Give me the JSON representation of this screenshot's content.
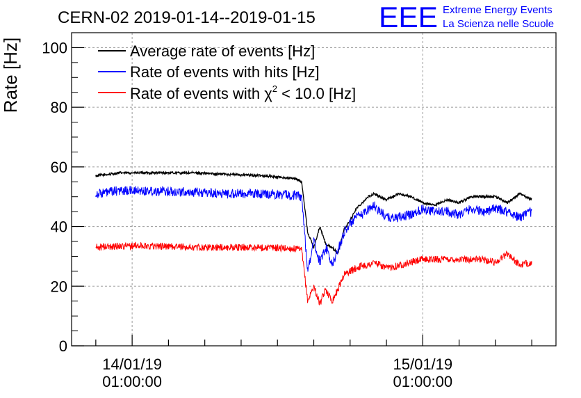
{
  "header": {
    "title": "CERN-02 2019-01-14--2019-01-15",
    "logo_text": "EEE",
    "logo_line1": "Extreme Energy Events",
    "logo_line2": "La Scienza nelle Scuole"
  },
  "chart_data": {
    "type": "line",
    "title": "CERN-02 2019-01-14--2019-01-15",
    "xlabel": "",
    "ylabel": "Rate [Hz]",
    "ylim": [
      0,
      105
    ],
    "yticks": [
      0,
      20,
      40,
      60,
      80,
      100
    ],
    "xlim": [
      "2019-01-13T20:00:00",
      "2019-01-15T12:00:00"
    ],
    "xticks": [
      {
        "date": "14/01/19",
        "time": "01:00:00",
        "x": "2019-01-14T01:00:00"
      },
      {
        "date": "15/01/19",
        "time": "01:00:00",
        "x": "2019-01-15T01:00:00"
      }
    ],
    "grid": true,
    "legend_position": "top-left",
    "series": [
      {
        "name": "Average rate of events [Hz]",
        "legend_label": "Average rate of events [Hz]",
        "color": "#000000",
        "noise": 0.4,
        "x": [
          "2019-01-13T22:00:00",
          "2019-01-14T00:00:00",
          "2019-01-14T03:00:00",
          "2019-01-14T06:00:00",
          "2019-01-14T09:00:00",
          "2019-01-14T12:00:00",
          "2019-01-14T14:30:00",
          "2019-01-14T15:00:00",
          "2019-01-14T15:30:00",
          "2019-01-14T16:00:00",
          "2019-01-14T16:30:00",
          "2019-01-14T17:00:00",
          "2019-01-14T17:30:00",
          "2019-01-14T18:00:00",
          "2019-01-14T18:30:00",
          "2019-01-14T19:00:00",
          "2019-01-14T19:30:00",
          "2019-01-14T20:00:00",
          "2019-01-14T20:30:00",
          "2019-01-14T21:00:00",
          "2019-01-14T21:30:00",
          "2019-01-14T22:00:00",
          "2019-01-14T23:00:00",
          "2019-01-15T00:00:00",
          "2019-01-15T01:00:00",
          "2019-01-15T02:00:00",
          "2019-01-15T03:00:00",
          "2019-01-15T04:00:00",
          "2019-01-15T05:00:00",
          "2019-01-15T06:00:00",
          "2019-01-15T07:00:00",
          "2019-01-15T08:00:00",
          "2019-01-15T09:00:00",
          "2019-01-15T10:00:00"
        ],
        "y": [
          57,
          58,
          58,
          58,
          57.5,
          57,
          56,
          55,
          38,
          33,
          40,
          34,
          33,
          31,
          39,
          42,
          46,
          48,
          50,
          51,
          50,
          49,
          51,
          50,
          48,
          47,
          49,
          48,
          50,
          50,
          50,
          48,
          51,
          49
        ]
      },
      {
        "name": "Rate of events with hits [Hz]",
        "legend_label": "Rate of events with hits [Hz]",
        "color": "#0000ff",
        "noise": 1.6,
        "x": [
          "2019-01-13T22:00:00",
          "2019-01-14T00:00:00",
          "2019-01-14T03:00:00",
          "2019-01-14T06:00:00",
          "2019-01-14T09:00:00",
          "2019-01-14T12:00:00",
          "2019-01-14T14:30:00",
          "2019-01-14T15:00:00",
          "2019-01-14T15:30:00",
          "2019-01-14T16:00:00",
          "2019-01-14T16:30:00",
          "2019-01-14T17:00:00",
          "2019-01-14T17:30:00",
          "2019-01-14T18:00:00",
          "2019-01-14T18:30:00",
          "2019-01-14T19:00:00",
          "2019-01-14T19:30:00",
          "2019-01-14T20:00:00",
          "2019-01-14T20:30:00",
          "2019-01-14T21:00:00",
          "2019-01-14T21:30:00",
          "2019-01-14T22:00:00",
          "2019-01-14T23:00:00",
          "2019-01-15T00:00:00",
          "2019-01-15T01:00:00",
          "2019-01-15T02:00:00",
          "2019-01-15T03:00:00",
          "2019-01-15T04:00:00",
          "2019-01-15T05:00:00",
          "2019-01-15T06:00:00",
          "2019-01-15T07:00:00",
          "2019-01-15T08:00:00",
          "2019-01-15T09:00:00",
          "2019-01-15T10:00:00"
        ],
        "y": [
          51,
          52,
          52,
          51.5,
          51,
          51,
          50.5,
          50,
          25,
          35,
          28,
          33,
          27,
          32,
          38,
          41,
          43,
          44,
          46,
          47,
          45,
          43,
          43,
          44,
          46,
          45,
          45,
          44,
          46,
          45,
          46,
          45,
          43,
          45
        ]
      },
      {
        "name": "Rate of events with χ² < 10.0 [Hz]",
        "legend_label": "Rate of events with χ",
        "legend_sup": "2",
        "legend_tail": " < 10.0 [Hz]",
        "color": "#ff0000",
        "noise": 1.2,
        "x": [
          "2019-01-13T22:00:00",
          "2019-01-14T00:00:00",
          "2019-01-14T03:00:00",
          "2019-01-14T06:00:00",
          "2019-01-14T09:00:00",
          "2019-01-14T12:00:00",
          "2019-01-14T14:30:00",
          "2019-01-14T15:00:00",
          "2019-01-14T15:30:00",
          "2019-01-14T16:00:00",
          "2019-01-14T16:30:00",
          "2019-01-14T17:00:00",
          "2019-01-14T17:30:00",
          "2019-01-14T18:00:00",
          "2019-01-14T18:30:00",
          "2019-01-14T19:00:00",
          "2019-01-14T19:30:00",
          "2019-01-14T20:00:00",
          "2019-01-14T20:30:00",
          "2019-01-14T21:00:00",
          "2019-01-14T21:30:00",
          "2019-01-14T22:00:00",
          "2019-01-14T23:00:00",
          "2019-01-15T00:00:00",
          "2019-01-15T01:00:00",
          "2019-01-15T02:00:00",
          "2019-01-15T03:00:00",
          "2019-01-15T04:00:00",
          "2019-01-15T05:00:00",
          "2019-01-15T06:00:00",
          "2019-01-15T07:00:00",
          "2019-01-15T08:00:00",
          "2019-01-15T09:00:00",
          "2019-01-15T10:00:00"
        ],
        "y": [
          33,
          33.5,
          33.5,
          33,
          33,
          33,
          32.5,
          32,
          15,
          20,
          14,
          19,
          15,
          19,
          24,
          25,
          26,
          27,
          27,
          28,
          27,
          26,
          27,
          28,
          29,
          29,
          29,
          29,
          29,
          29,
          28,
          31,
          27,
          28
        ]
      }
    ]
  }
}
